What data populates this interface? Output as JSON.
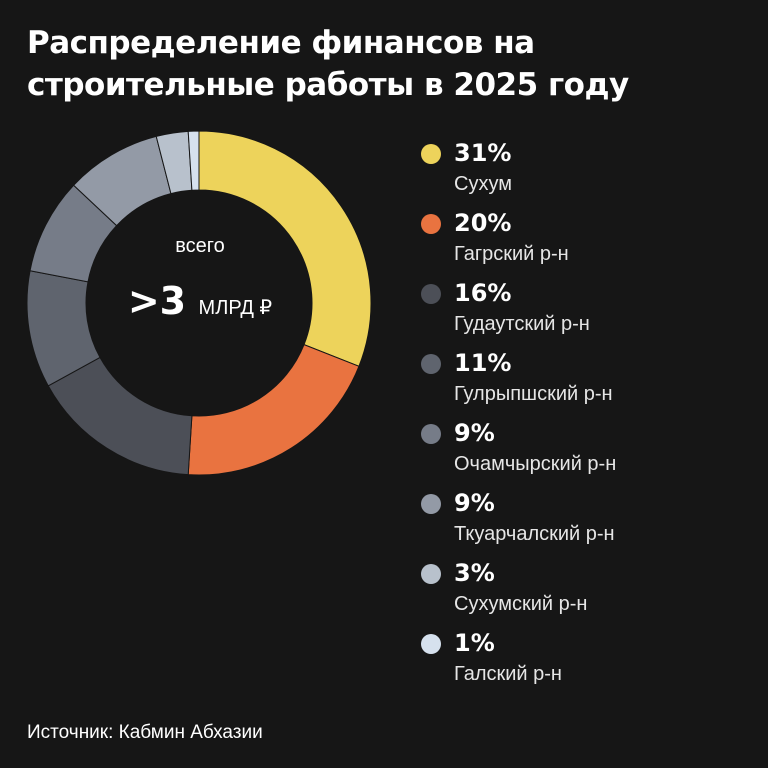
{
  "title": "Распределение финансов на строительные работы в 2025 году",
  "center": {
    "caption": "всего",
    "value": ">3",
    "unit": "МЛРД ₽"
  },
  "source": "Источник: Кабмин Абхазии",
  "chart_data": {
    "type": "pie",
    "title": "Распределение финансов на строительные работы в 2025 году",
    "donut": true,
    "unit": "%",
    "categories": [
      "Сухум",
      "Гагрский р-н",
      "Гудаутский р-н",
      "Гулрыпшский р-н",
      "Очамчырский р-н",
      "Ткуарчалский р-н",
      "Сухумский р-н",
      "Галский р-н"
    ],
    "values": [
      31,
      20,
      16,
      11,
      9,
      9,
      3,
      1
    ],
    "labels": [
      "31%",
      "20%",
      "16%",
      "11%",
      "9%",
      "9%",
      "3%",
      "1%"
    ],
    "colors": [
      "#EDD35B",
      "#E97340",
      "#4C4F57",
      "#5F646E",
      "#767C88",
      "#939AA6",
      "#B8C1CC",
      "#D6E1EE"
    ],
    "legend_position": "right"
  }
}
